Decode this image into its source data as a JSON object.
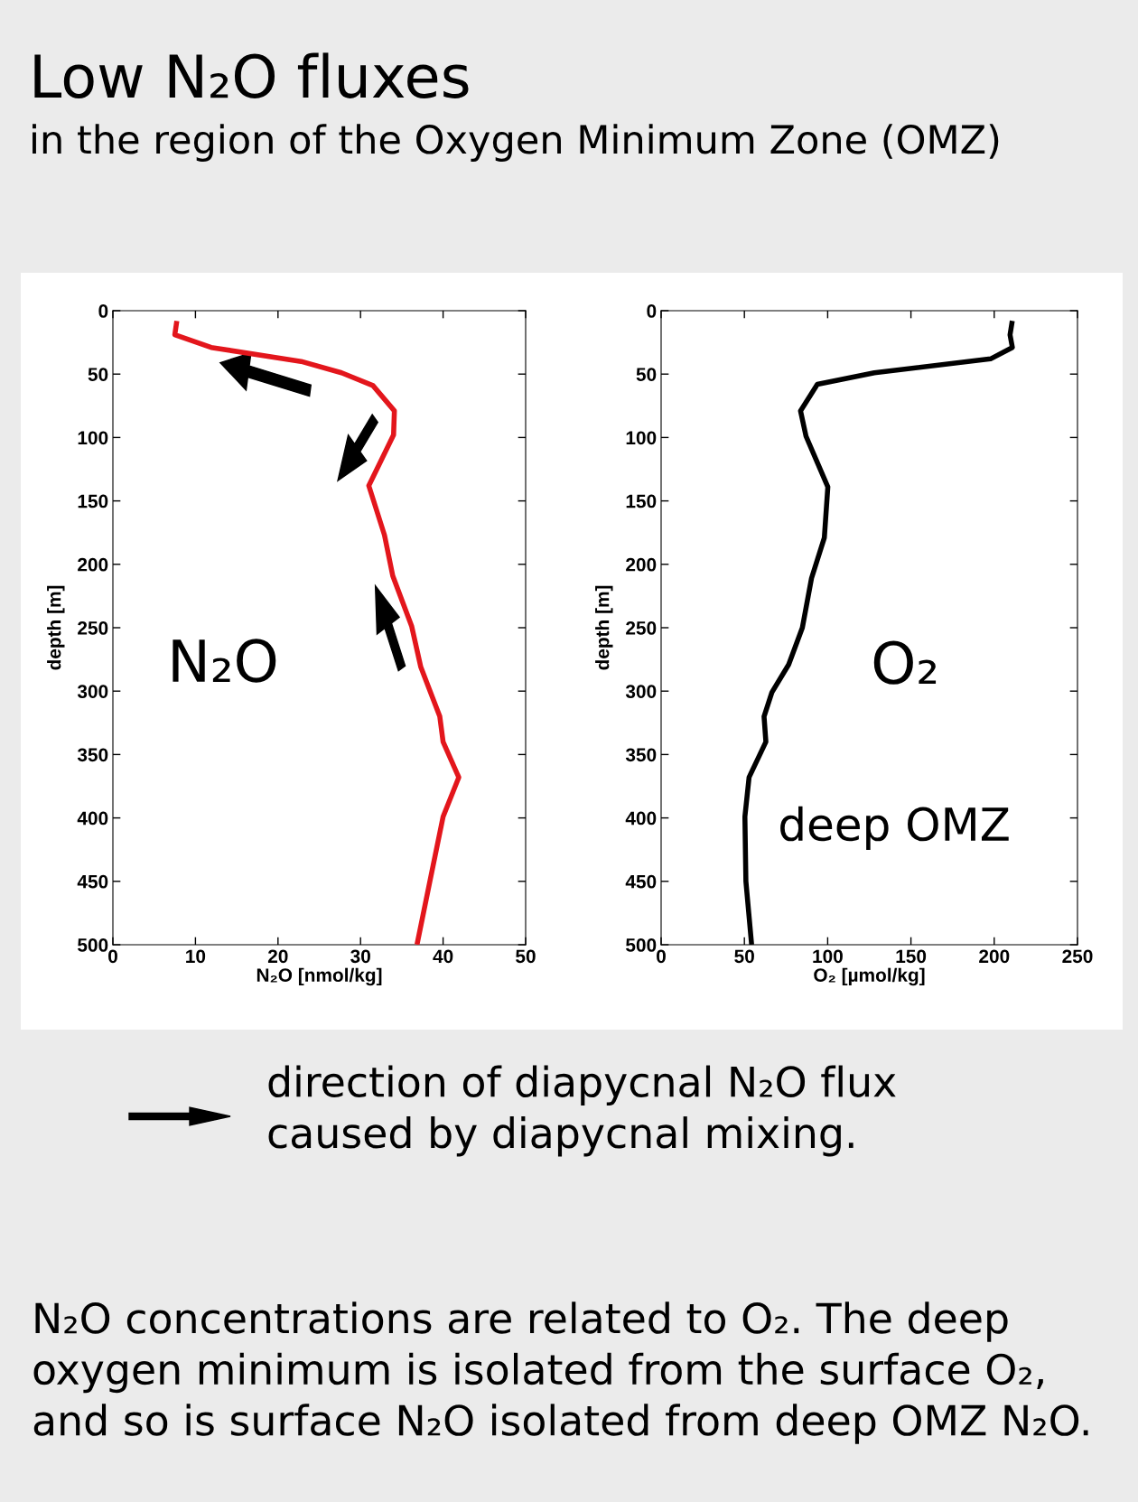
{
  "chart_data": [
    {
      "type": "line",
      "title": "Low N₂O fluxes",
      "subtitle": "in the region of the Oxygen Minimum Zone (OMZ)",
      "xlabel": "N₂O [nmol/kg]",
      "ylabel": "depth [m]",
      "xlim": [
        0,
        50
      ],
      "xticks": [
        0,
        10,
        20,
        30,
        40,
        50
      ],
      "ylim": [
        500,
        0
      ],
      "yticks": [
        0,
        50,
        100,
        150,
        200,
        250,
        300,
        350,
        400,
        450,
        500
      ],
      "grid": false,
      "marker": "none",
      "line_style": "solid",
      "series": [
        {
          "name": "N₂O",
          "color": "#e3161c",
          "x": [
            7.7,
            7.5,
            11.9,
            22.8,
            27.7,
            31.5,
            34.1,
            34.0,
            31.0,
            32.9,
            33.9,
            36.2,
            37.3,
            39.6,
            40.0,
            41.9,
            40.0,
            38.4,
            36.9
          ],
          "values": [
            10,
            19,
            29,
            40,
            49,
            59,
            79,
            98,
            138,
            177,
            209,
            249,
            281,
            320,
            340,
            368,
            399,
            450,
            498
          ]
        }
      ],
      "annotations": [
        "direction of diapycnal N₂O flux\ncaused by diapycnal mixing.",
        "N₂O concentrations are related to O₂. The deep\noxygen minimum is isolated from the surface O₂,\nand so is surface N₂O isolated from deep OMZ N₂O."
      ]
    },
    {
      "type": "line",
      "xlabel": "O₂ [µmol/kg]",
      "ylabel": "depth [m]",
      "xlim": [
        0,
        250
      ],
      "xticks": [
        0,
        50,
        100,
        150,
        200,
        250
      ],
      "ylim": [
        500,
        0
      ],
      "yticks": [
        0,
        50,
        100,
        150,
        200,
        250,
        300,
        350,
        400,
        450,
        500
      ],
      "grid": false,
      "marker": "none",
      "line_style": "solid",
      "series": [
        {
          "name": "O₂",
          "color": "#000000",
          "x": [
            210.6,
            209.5,
            210.9,
            197.8,
            128,
            93.8,
            83.7,
            87,
            100.1,
            98,
            90.3,
            84.8,
            76.6,
            66.5,
            61.8,
            62.9,
            52.8,
            50.3,
            50.9,
            54.2
          ],
          "values": [
            10,
            19,
            29,
            38,
            49,
            58,
            79,
            99,
            139,
            179,
            211,
            250,
            279,
            301,
            320,
            340,
            368,
            399,
            450,
            498
          ]
        }
      ],
      "annotations": [
        "deep OMZ"
      ]
    }
  ]
}
